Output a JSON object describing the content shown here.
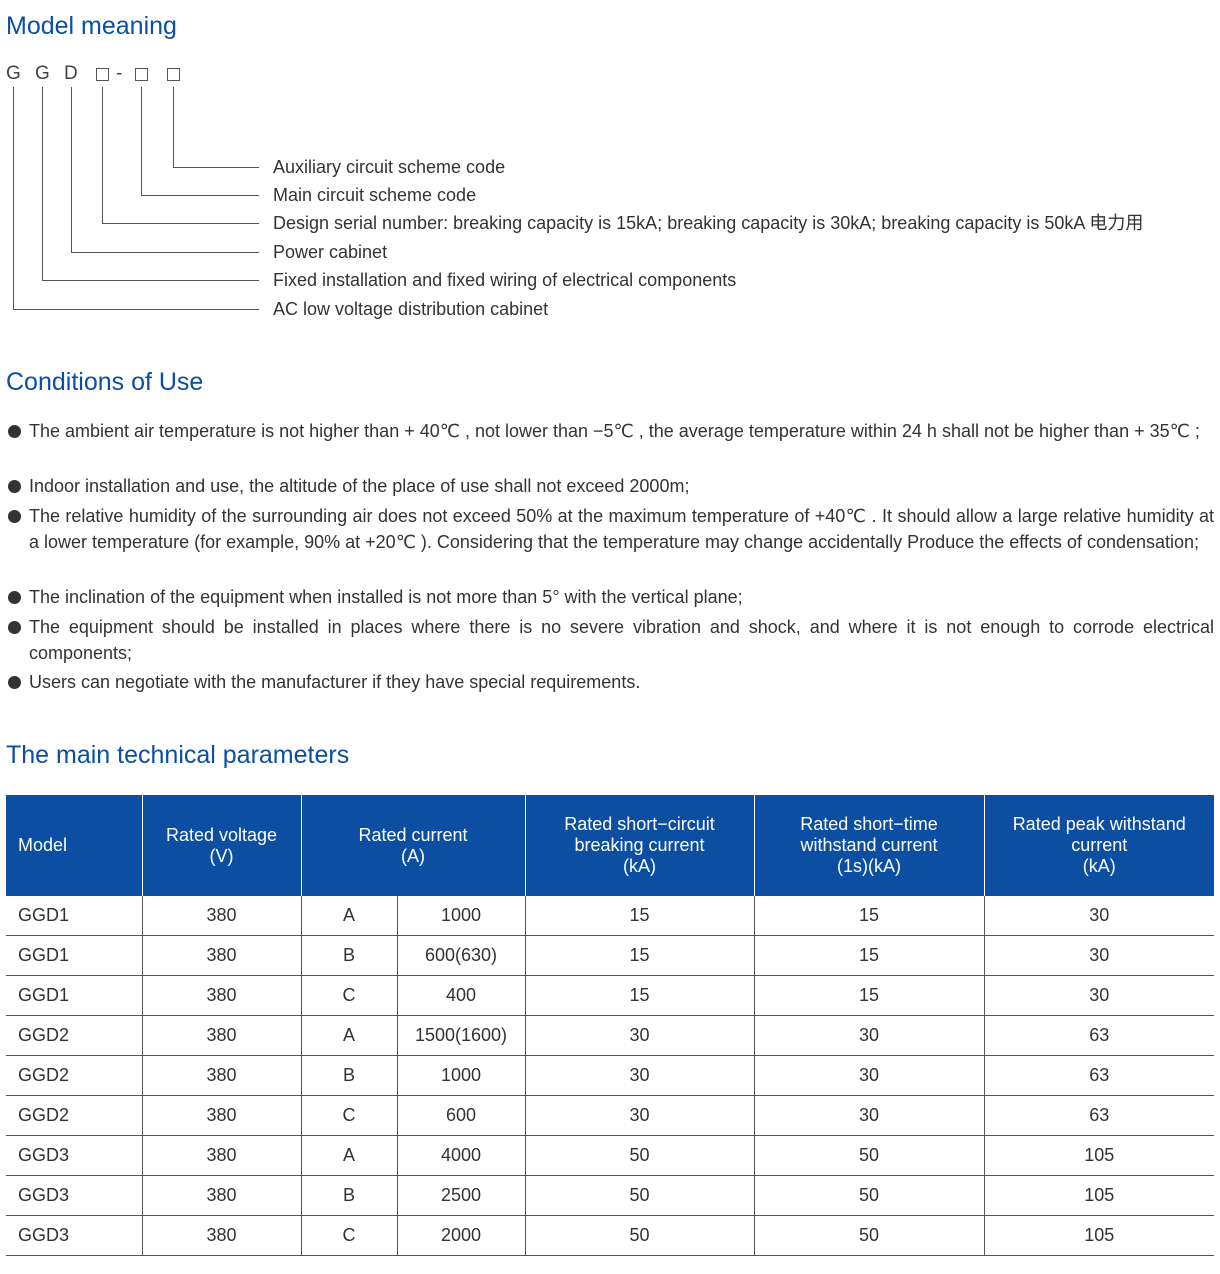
{
  "model_meaning": {
    "title": "Model meaning",
    "code_letters": [
      "G",
      "G",
      "D"
    ],
    "code_dash": "-",
    "items": [
      "Auxiliary circuit scheme code",
      "Main circuit scheme code",
      "Design serial number: breaking capacity is 15kA; breaking capacity is 30kA; breaking capacity is 50kA 电力用",
      "Power cabinet",
      "Fixed installation and fixed wiring of electrical components",
      "AC low voltage distribution cabinet"
    ]
  },
  "conditions": {
    "title": "Conditions of Use",
    "items": [
      "The ambient air temperature is not higher than + 40℃ , not lower than −5℃ , the average temperature within 24 h shall not be higher than + 35℃ ;",
      "Indoor installation and use, the altitude of the place of use shall not exceed 2000m;",
      "The relative humidity of the surrounding air does not exceed 50% at the maximum temperature of +40℃ . It should allow a large relative humidity at a lower temperature (for example, 90% at +20℃ ). Considering that the temperature may change accidentally Produce the effects of condensation;",
      "The inclination of the equipment when installed is not more than 5°   with the vertical plane;",
      "The equipment should be installed in places where there is no severe vibration and shock, and where it is not enough to corrode electrical components;",
      "Users can negotiate with the manufacturer if they have special requirements."
    ]
  },
  "parameters": {
    "title": "The main technical parameters",
    "headers": {
      "model": [
        "Model"
      ],
      "voltage": [
        "Rated voltage",
        "(V)"
      ],
      "current": [
        "Rated current",
        "(A)"
      ],
      "breaking": [
        "Rated short−circuit",
        "breaking current",
        "(kA)"
      ],
      "short_time": [
        "Rated short−time",
        "withstand current",
        "(1s)(kA)"
      ],
      "peak": [
        "Rated peak withstand",
        "current",
        "(kA)"
      ]
    },
    "rows": [
      [
        "GGD1",
        "380",
        "A",
        "1000",
        "15",
        "15",
        "30"
      ],
      [
        "GGD1",
        "380",
        "B",
        "600(630)",
        "15",
        "15",
        "30"
      ],
      [
        "GGD1",
        "380",
        "C",
        "400",
        "15",
        "15",
        "30"
      ],
      [
        "GGD2",
        "380",
        "A",
        "1500(1600)",
        "30",
        "30",
        "63"
      ],
      [
        "GGD2",
        "380",
        "B",
        "1000",
        "30",
        "30",
        "63"
      ],
      [
        "GGD2",
        "380",
        "C",
        "600",
        "30",
        "30",
        "63"
      ],
      [
        "GGD3",
        "380",
        "A",
        "4000",
        "50",
        "50",
        "105"
      ],
      [
        "GGD3",
        "380",
        "B",
        "2500",
        "50",
        "50",
        "105"
      ],
      [
        "GGD3",
        "380",
        "C",
        "2000",
        "50",
        "50",
        "105"
      ]
    ]
  }
}
